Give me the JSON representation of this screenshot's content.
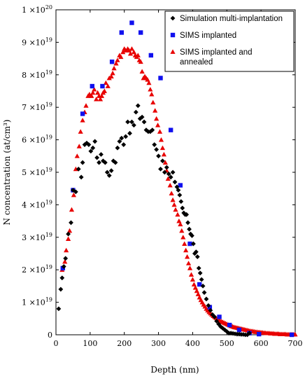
{
  "chart_data": {
    "type": "scatter",
    "xlabel": "Depth (nm)",
    "ylabel": "N concentration (at/cm³)",
    "xlim": [
      0,
      700
    ],
    "ylim": [
      0,
      1e+20
    ],
    "x_ticks": [
      "0",
      "100",
      "200",
      "300",
      "400",
      "500",
      "600",
      "700"
    ],
    "y_ticks": [
      {
        "value": 0,
        "label": "0"
      },
      {
        "value": 1e+19,
        "mant": "1",
        "exp": "19"
      },
      {
        "value": 2e+19,
        "mant": "2",
        "exp": "19"
      },
      {
        "value": 3e+19,
        "mant": "3",
        "exp": "19"
      },
      {
        "value": 4e+19,
        "mant": "4",
        "exp": "19"
      },
      {
        "value": 5e+19,
        "mant": "5",
        "exp": "19"
      },
      {
        "value": 6e+19,
        "mant": "6",
        "exp": "19"
      },
      {
        "value": 7e+19,
        "mant": "7",
        "exp": "19"
      },
      {
        "value": 8e+19,
        "mant": "8",
        "exp": "19"
      },
      {
        "value": 9e+19,
        "mant": "9",
        "exp": "19"
      },
      {
        "value": 1e+20,
        "mant": "1",
        "exp": "20"
      }
    ],
    "times_sign": "×10",
    "grid": false,
    "legend_position": "top-right",
    "series": [
      {
        "name": "Simulation multi-implantation",
        "marker": "diamond",
        "color": "#000000",
        "points": [
          [
            8,
            0.8
          ],
          [
            14,
            1.4
          ],
          [
            18,
            1.75
          ],
          [
            23,
            2.1
          ],
          [
            28,
            2.35
          ],
          [
            36,
            3.1
          ],
          [
            44,
            3.45
          ],
          [
            50,
            4.45
          ],
          [
            58,
            4.4
          ],
          [
            66,
            5.1
          ],
          [
            74,
            4.85
          ],
          [
            78,
            5.3
          ],
          [
            84,
            5.85
          ],
          [
            90,
            5.9
          ],
          [
            96,
            5.85
          ],
          [
            102,
            5.65
          ],
          [
            108,
            5.75
          ],
          [
            114,
            5.95
          ],
          [
            120,
            5.45
          ],
          [
            126,
            5.3
          ],
          [
            132,
            5.55
          ],
          [
            138,
            5.35
          ],
          [
            144,
            5.3
          ],
          [
            150,
            5.0
          ],
          [
            156,
            4.9
          ],
          [
            162,
            5.05
          ],
          [
            168,
            5.35
          ],
          [
            174,
            5.3
          ],
          [
            180,
            5.75
          ],
          [
            186,
            5.95
          ],
          [
            192,
            6.05
          ],
          [
            198,
            5.85
          ],
          [
            204,
            6.1
          ],
          [
            210,
            6.55
          ],
          [
            216,
            6.2
          ],
          [
            222,
            6.55
          ],
          [
            228,
            6.45
          ],
          [
            234,
            6.85
          ],
          [
            240,
            7.05
          ],
          [
            246,
            6.65
          ],
          [
            252,
            6.7
          ],
          [
            258,
            6.55
          ],
          [
            264,
            6.3
          ],
          [
            270,
            6.25
          ],
          [
            276,
            6.25
          ],
          [
            282,
            6.3
          ],
          [
            288,
            5.85
          ],
          [
            294,
            5.7
          ],
          [
            300,
            5.5
          ],
          [
            306,
            5.1
          ],
          [
            312,
            5.35
          ],
          [
            318,
            5.0
          ],
          [
            324,
            5.15
          ],
          [
            330,
            4.95
          ],
          [
            336,
            4.85
          ],
          [
            342,
            5.0
          ],
          [
            348,
            4.7
          ],
          [
            354,
            4.55
          ],
          [
            358,
            4.45
          ],
          [
            362,
            4.3
          ],
          [
            366,
            4.1
          ],
          [
            370,
            3.9
          ],
          [
            374,
            3.75
          ],
          [
            378,
            3.7
          ],
          [
            382,
            3.7
          ],
          [
            386,
            3.45
          ],
          [
            390,
            3.25
          ],
          [
            394,
            3.1
          ],
          [
            398,
            3.05
          ],
          [
            402,
            2.8
          ],
          [
            406,
            2.5
          ],
          [
            410,
            2.55
          ],
          [
            414,
            2.4
          ],
          [
            418,
            2.05
          ],
          [
            422,
            1.9
          ],
          [
            426,
            1.7
          ],
          [
            430,
            1.5
          ],
          [
            434,
            1.3
          ],
          [
            440,
            1.1
          ],
          [
            446,
            0.9
          ],
          [
            452,
            0.75
          ],
          [
            458,
            0.62
          ],
          [
            464,
            0.55
          ],
          [
            470,
            0.42
          ],
          [
            476,
            0.33
          ],
          [
            482,
            0.25
          ],
          [
            488,
            0.2
          ],
          [
            494,
            0.15
          ],
          [
            500,
            0.1
          ],
          [
            506,
            0.05
          ],
          [
            512,
            0.05
          ],
          [
            518,
            0.04
          ],
          [
            524,
            0.03
          ],
          [
            530,
            0.02
          ],
          [
            536,
            0.02
          ],
          [
            542,
            0.01
          ],
          [
            548,
            0.01
          ],
          [
            554,
            0.0
          ],
          [
            560,
            0.0
          ],
          [
            566,
            0.05
          ]
        ]
      },
      {
        "name": "SIMS implanted",
        "marker": "square",
        "color": "#1010ee",
        "points": [
          [
            20,
            2.05
          ],
          [
            50,
            4.45
          ],
          [
            78,
            6.8
          ],
          [
            106,
            7.65
          ],
          [
            136,
            7.65
          ],
          [
            164,
            8.4
          ],
          [
            192,
            9.3
          ],
          [
            222,
            9.6
          ],
          [
            248,
            9.3
          ],
          [
            278,
            8.6
          ],
          [
            306,
            7.9
          ],
          [
            336,
            6.3
          ],
          [
            364,
            4.6
          ],
          [
            392,
            2.8
          ],
          [
            420,
            1.55
          ],
          [
            450,
            0.85
          ],
          [
            478,
            0.55
          ],
          [
            508,
            0.3
          ],
          [
            536,
            0.15
          ],
          [
            566,
            0.05
          ],
          [
            594,
            0.02
          ],
          [
            690,
            0.0
          ]
        ]
      },
      {
        "name": "SIMS implanted and annealed",
        "marker": "triangle",
        "color": "#e80000",
        "points": [
          [
            18,
            2.0
          ],
          [
            26,
            2.25
          ],
          [
            30,
            2.6
          ],
          [
            36,
            2.95
          ],
          [
            40,
            3.2
          ],
          [
            46,
            3.85
          ],
          [
            52,
            4.3
          ],
          [
            58,
            5.1
          ],
          [
            62,
            5.5
          ],
          [
            68,
            5.8
          ],
          [
            72,
            6.25
          ],
          [
            78,
            6.6
          ],
          [
            84,
            6.85
          ],
          [
            88,
            7.05
          ],
          [
            94,
            7.35
          ],
          [
            98,
            7.4
          ],
          [
            104,
            7.35
          ],
          [
            108,
            7.45
          ],
          [
            112,
            7.55
          ],
          [
            118,
            7.25
          ],
          [
            122,
            7.45
          ],
          [
            126,
            7.35
          ],
          [
            130,
            7.25
          ],
          [
            134,
            7.35
          ],
          [
            138,
            7.45
          ],
          [
            142,
            7.5
          ],
          [
            146,
            7.75
          ],
          [
            152,
            7.65
          ],
          [
            156,
            7.9
          ],
          [
            162,
            7.95
          ],
          [
            166,
            8.05
          ],
          [
            170,
            8.2
          ],
          [
            176,
            8.35
          ],
          [
            180,
            8.45
          ],
          [
            186,
            8.6
          ],
          [
            190,
            8.55
          ],
          [
            196,
            8.7
          ],
          [
            200,
            8.8
          ],
          [
            204,
            8.75
          ],
          [
            210,
            8.8
          ],
          [
            214,
            8.75
          ],
          [
            218,
            8.65
          ],
          [
            222,
            8.8
          ],
          [
            228,
            8.7
          ],
          [
            232,
            8.6
          ],
          [
            236,
            8.55
          ],
          [
            240,
            8.6
          ],
          [
            244,
            8.45
          ],
          [
            248,
            8.4
          ],
          [
            252,
            8.1
          ],
          [
            256,
            7.9
          ],
          [
            260,
            7.95
          ],
          [
            264,
            7.9
          ],
          [
            268,
            7.85
          ],
          [
            272,
            7.75
          ],
          [
            276,
            7.55
          ],
          [
            280,
            7.4
          ],
          [
            284,
            7.15
          ],
          [
            290,
            6.9
          ],
          [
            294,
            6.65
          ],
          [
            298,
            6.45
          ],
          [
            304,
            6.25
          ],
          [
            308,
            6.0
          ],
          [
            312,
            5.75
          ],
          [
            316,
            5.55
          ],
          [
            320,
            5.3
          ],
          [
            324,
            5.05
          ],
          [
            328,
            4.8
          ],
          [
            334,
            4.6
          ],
          [
            338,
            4.35
          ],
          [
            342,
            4.15
          ],
          [
            346,
            4.0
          ],
          [
            350,
            3.85
          ],
          [
            356,
            3.7
          ],
          [
            360,
            3.5
          ],
          [
            364,
            3.4
          ],
          [
            368,
            3.2
          ],
          [
            372,
            3.0
          ],
          [
            376,
            2.8
          ],
          [
            380,
            2.6
          ],
          [
            384,
            2.4
          ],
          [
            388,
            2.2
          ],
          [
            392,
            2.05
          ],
          [
            396,
            1.85
          ],
          [
            400,
            1.7
          ],
          [
            404,
            1.55
          ],
          [
            408,
            1.45
          ],
          [
            412,
            1.35
          ],
          [
            416,
            1.25
          ],
          [
            420,
            1.15
          ],
          [
            424,
            1.07
          ],
          [
            428,
            1.0
          ],
          [
            432,
            0.93
          ],
          [
            436,
            0.87
          ],
          [
            440,
            0.8
          ],
          [
            444,
            0.75
          ],
          [
            448,
            0.7
          ],
          [
            452,
            0.66
          ],
          [
            456,
            0.62
          ],
          [
            460,
            0.58
          ],
          [
            464,
            0.55
          ],
          [
            468,
            0.52
          ],
          [
            472,
            0.49
          ],
          [
            476,
            0.46
          ],
          [
            480,
            0.43
          ],
          [
            484,
            0.41
          ],
          [
            488,
            0.39
          ],
          [
            492,
            0.37
          ],
          [
            496,
            0.35
          ],
          [
            500,
            0.33
          ],
          [
            504,
            0.31
          ],
          [
            508,
            0.29
          ],
          [
            512,
            0.27
          ],
          [
            516,
            0.26
          ],
          [
            520,
            0.24
          ],
          [
            524,
            0.23
          ],
          [
            528,
            0.22
          ],
          [
            532,
            0.21
          ],
          [
            536,
            0.2
          ],
          [
            540,
            0.19
          ],
          [
            544,
            0.18
          ],
          [
            548,
            0.17
          ],
          [
            552,
            0.16
          ],
          [
            556,
            0.15
          ],
          [
            560,
            0.14
          ],
          [
            564,
            0.13
          ],
          [
            568,
            0.12
          ],
          [
            572,
            0.11
          ],
          [
            576,
            0.11
          ],
          [
            580,
            0.1
          ],
          [
            584,
            0.09
          ],
          [
            588,
            0.09
          ],
          [
            592,
            0.08
          ],
          [
            596,
            0.08
          ],
          [
            600,
            0.07
          ],
          [
            604,
            0.07
          ],
          [
            608,
            0.06
          ],
          [
            612,
            0.06
          ],
          [
            616,
            0.05
          ],
          [
            620,
            0.05
          ],
          [
            624,
            0.05
          ],
          [
            628,
            0.04
          ],
          [
            632,
            0.04
          ],
          [
            636,
            0.04
          ],
          [
            640,
            0.03
          ],
          [
            644,
            0.03
          ],
          [
            648,
            0.03
          ],
          [
            652,
            0.03
          ],
          [
            656,
            0.02
          ],
          [
            660,
            0.02
          ],
          [
            664,
            0.02
          ],
          [
            668,
            0.02
          ],
          [
            672,
            0.02
          ],
          [
            676,
            0.01
          ],
          [
            680,
            0.01
          ],
          [
            684,
            0.01
          ],
          [
            688,
            0.01
          ],
          [
            692,
            0.01
          ],
          [
            696,
            0.01
          ],
          [
            700,
            0.01
          ]
        ]
      }
    ]
  }
}
